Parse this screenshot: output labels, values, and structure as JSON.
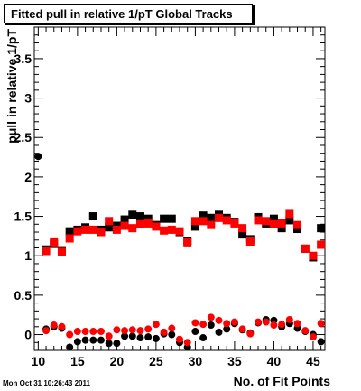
{
  "title": "Fitted pull in relative 1/pT  Global Tracks",
  "timestamp": "Mon Oct 31 10:26:43 2011",
  "chart_data": {
    "type": "scatter",
    "title": "Fitted pull in relative 1/pT  Global Tracks",
    "xlabel": "No. of Fit Points",
    "ylabel": "pull in relative 1/pT",
    "xlim": [
      9.5,
      46.5
    ],
    "ylim": [
      -0.2,
      3.9
    ],
    "x_ticks": [
      10,
      15,
      20,
      25,
      30,
      35,
      40,
      45
    ],
    "y_ticks": [
      0,
      0.5,
      1,
      1.5,
      2,
      2.5,
      3,
      3.5
    ],
    "grid": false,
    "series": [
      {
        "marker": "square",
        "color": "#000000",
        "x": [
          11,
          12,
          13,
          14,
          15,
          16,
          17,
          18,
          19,
          20,
          21,
          22,
          23,
          24,
          25,
          26,
          27,
          28,
          29,
          30,
          31,
          32,
          33,
          34,
          35,
          36,
          37,
          38,
          39,
          40,
          41,
          42,
          43,
          44,
          45,
          46
        ],
        "y": [
          1.08,
          1.15,
          1.07,
          1.31,
          1.33,
          1.36,
          1.5,
          1.33,
          1.36,
          1.38,
          1.46,
          1.52,
          1.5,
          1.47,
          1.39,
          1.47,
          1.47,
          1.3,
          1.19,
          1.37,
          1.51,
          1.48,
          1.52,
          1.48,
          1.43,
          1.27,
          1.21,
          1.49,
          1.41,
          1.47,
          1.35,
          1.45,
          1.34,
          1.09,
          0.98,
          1.35
        ]
      },
      {
        "marker": "square",
        "color": "#ff0000",
        "x": [
          11,
          12,
          13,
          14,
          15,
          16,
          17,
          18,
          19,
          20,
          21,
          22,
          23,
          24,
          25,
          26,
          27,
          28,
          29,
          30,
          31,
          32,
          33,
          34,
          35,
          36,
          37,
          38,
          39,
          40,
          41,
          42,
          43,
          44,
          45,
          46
        ],
        "y": [
          1.06,
          1.17,
          1.05,
          1.22,
          1.31,
          1.33,
          1.33,
          1.3,
          1.44,
          1.33,
          1.38,
          1.35,
          1.4,
          1.41,
          1.37,
          1.32,
          1.33,
          1.31,
          1.17,
          1.44,
          1.44,
          1.39,
          1.48,
          1.45,
          1.41,
          1.35,
          1.18,
          1.45,
          1.44,
          1.4,
          1.41,
          1.53,
          1.39,
          1.09,
          1.0,
          1.14
        ]
      },
      {
        "marker": "circle",
        "color": "#000000",
        "x": [
          10,
          11,
          12,
          13,
          14,
          15,
          16,
          17,
          18,
          19,
          20,
          21,
          22,
          23,
          24,
          25,
          26,
          27,
          28,
          29,
          30,
          31,
          32,
          33,
          34,
          35,
          36,
          37,
          38,
          39,
          40,
          41,
          42,
          43,
          44,
          45,
          46
        ],
        "y": [
          2.26,
          0.07,
          0.1,
          0.08,
          -0.16,
          -0.09,
          -0.07,
          -0.07,
          -0.07,
          -0.11,
          -0.11,
          -0.02,
          -0.02,
          -0.04,
          -0.03,
          -0.05,
          0.01,
          0.0,
          -0.1,
          -0.16,
          0.04,
          -0.04,
          0.12,
          0.03,
          0.07,
          0.14,
          0.06,
          0.02,
          0.15,
          0.19,
          0.18,
          0.1,
          0.14,
          0.08,
          0.04,
          0.0,
          -0.09
        ]
      },
      {
        "marker": "circle",
        "color": "#ff0000",
        "x": [
          11,
          12,
          13,
          14,
          15,
          16,
          17,
          18,
          19,
          20,
          21,
          22,
          23,
          24,
          25,
          26,
          27,
          28,
          29,
          30,
          31,
          32,
          33,
          34,
          35,
          36,
          37,
          38,
          39,
          40,
          41,
          42,
          43,
          44,
          45,
          46
        ],
        "y": [
          0.05,
          0.12,
          0.1,
          0.0,
          0.04,
          0.04,
          0.04,
          0.04,
          -0.02,
          0.06,
          0.05,
          0.06,
          0.05,
          0.07,
          0.13,
          0.03,
          0.08,
          -0.06,
          -0.1,
          0.15,
          0.13,
          0.22,
          0.18,
          0.14,
          0.16,
          0.07,
          0.01,
          0.16,
          0.16,
          0.12,
          0.13,
          0.19,
          0.14,
          0.05,
          -0.03,
          0.14
        ]
      }
    ]
  }
}
